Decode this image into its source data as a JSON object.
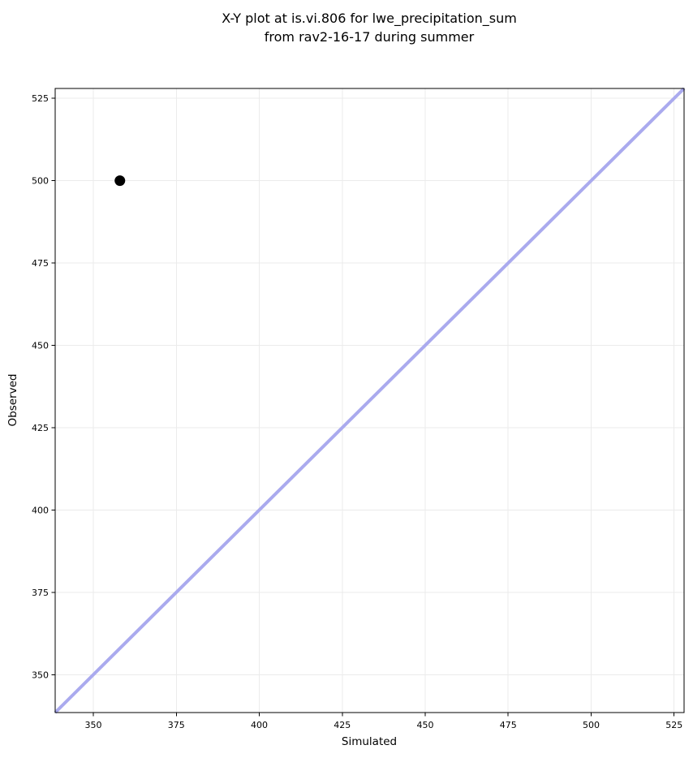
{
  "chart_data": {
    "type": "scatter",
    "title_lines": [
      "X-Y plot at is.vi.806 for lwe_precipitation_sum",
      "from rav2-16-17 during summer"
    ],
    "title": "X-Y plot at is.vi.806 for lwe_precipitation_sum from rav2-16-17 during summer",
    "xlabel": "Simulated",
    "ylabel": "Observed",
    "xlim": [
      338.5,
      528
    ],
    "ylim": [
      338.5,
      528
    ],
    "x_ticks": [
      350,
      375,
      400,
      425,
      450,
      475,
      500,
      525
    ],
    "y_ticks": [
      350,
      375,
      400,
      425,
      450,
      475,
      500,
      525
    ],
    "grid": true,
    "legend": "none",
    "series": [
      {
        "name": "observed-vs-simulated-point",
        "kind": "scatter",
        "marker": "circle",
        "marker_radius": 6.5,
        "color": "#000000",
        "points": [
          [
            358,
            500
          ]
        ]
      },
      {
        "name": "identity-line",
        "kind": "line",
        "color": "#aaaaee",
        "width": 4,
        "points": [
          [
            338.5,
            338.5
          ],
          [
            528,
            528
          ]
        ]
      }
    ],
    "colors": {
      "background": "#ffffff",
      "grid": "#ebebeb",
      "spine": "#000000",
      "text": "#000000",
      "marker": "#000000",
      "identity_line": "#aaaaee"
    }
  }
}
